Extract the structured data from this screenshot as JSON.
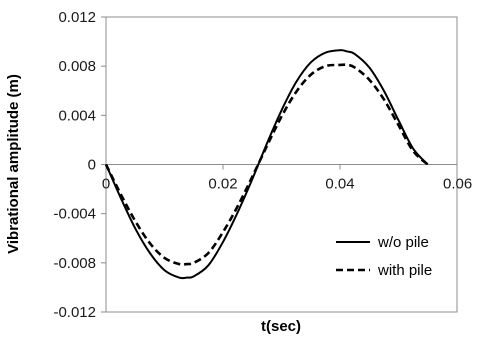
{
  "chart_data": {
    "type": "line",
    "title": "",
    "xlabel": "t(sec)",
    "ylabel": "Vibrational amplitude (m)",
    "xlim": [
      0,
      0.06
    ],
    "ylim": [
      -0.012,
      0.012
    ],
    "x_ticks": [
      "0",
      "0.02",
      "0.04",
      "0.06"
    ],
    "y_ticks": [
      "0.012",
      "0.008",
      "0.004",
      "0",
      "-0.004",
      "-0.008",
      "-0.012"
    ],
    "grid": false,
    "legend_position": "bottom-right",
    "series": [
      {
        "name": "w/o pile",
        "style": "solid",
        "color": "#000000",
        "x": [
          0,
          0.0025,
          0.005,
          0.0075,
          0.01,
          0.0125,
          0.0138,
          0.015,
          0.0175,
          0.02,
          0.0225,
          0.025,
          0.0275,
          0.03,
          0.0325,
          0.035,
          0.0375,
          0.04,
          0.0412,
          0.0425,
          0.045,
          0.0475,
          0.05,
          0.0525,
          0.055
        ],
        "y": [
          0,
          -0.0027,
          -0.0052,
          -0.0072,
          -0.0086,
          -0.0092,
          -0.0092,
          -0.0091,
          -0.0082,
          -0.0063,
          -0.0039,
          -0.0012,
          0.0017,
          0.0044,
          0.0067,
          0.0083,
          0.0091,
          0.0093,
          0.0092,
          0.009,
          0.0079,
          0.006,
          0.0036,
          0.0013,
          0
        ]
      },
      {
        "name": "with pile",
        "style": "dashed",
        "color": "#000000",
        "x": [
          0,
          0.0025,
          0.005,
          0.0075,
          0.01,
          0.0125,
          0.0138,
          0.015,
          0.0175,
          0.02,
          0.0225,
          0.025,
          0.0275,
          0.03,
          0.0325,
          0.035,
          0.0375,
          0.04,
          0.0412,
          0.0425,
          0.045,
          0.0475,
          0.05,
          0.0525,
          0.055
        ],
        "y": [
          0,
          -0.0024,
          -0.0046,
          -0.0064,
          -0.0076,
          -0.0081,
          -0.0081,
          -0.008,
          -0.0072,
          -0.0055,
          -0.0034,
          -0.001,
          0.0015,
          0.0039,
          0.0059,
          0.0073,
          0.008,
          0.0081,
          0.0081,
          0.0079,
          0.0069,
          0.0053,
          0.0032,
          0.0011,
          0
        ]
      }
    ]
  }
}
